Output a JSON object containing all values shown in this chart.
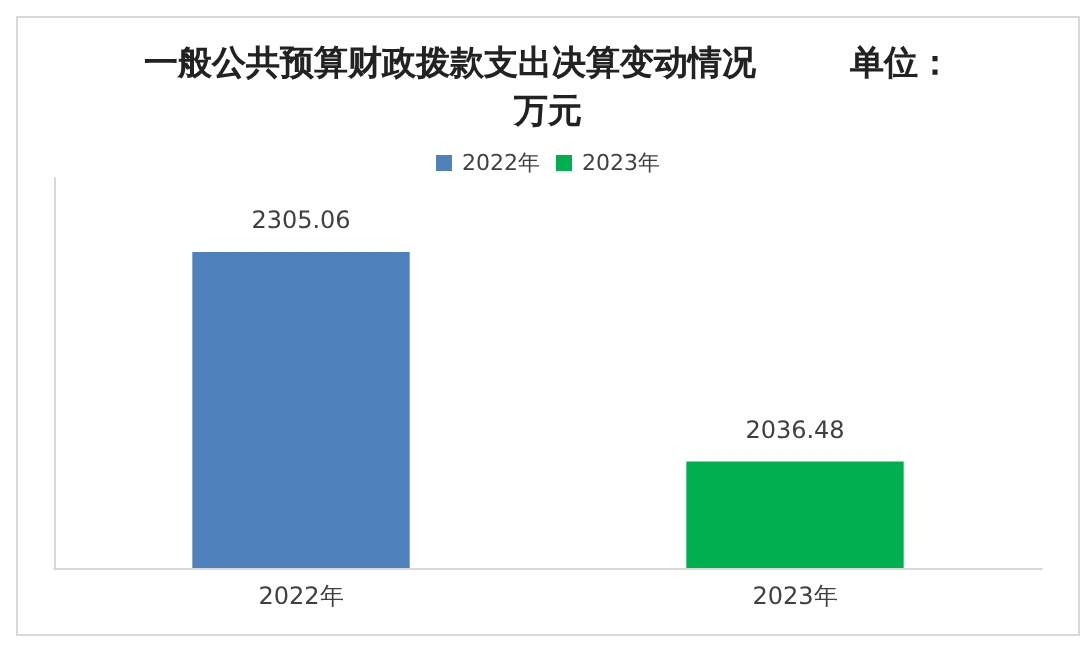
{
  "chart_data": {
    "type": "bar",
    "title": "一般公共预算财政拨款支出决算变动情况        单位：万元",
    "categories": [
      "2022年",
      "2023年"
    ],
    "series": [
      {
        "name": "2022年",
        "color": "#4f81bd",
        "values": [
          2305.06,
          null
        ]
      },
      {
        "name": "2023年",
        "color": "#00b050",
        "values": [
          null,
          2036.48
        ]
      }
    ],
    "ylim": [
      1900,
      2400
    ],
    "tick_labels": "x",
    "data_labels": true,
    "legend": "top",
    "grid": false
  }
}
